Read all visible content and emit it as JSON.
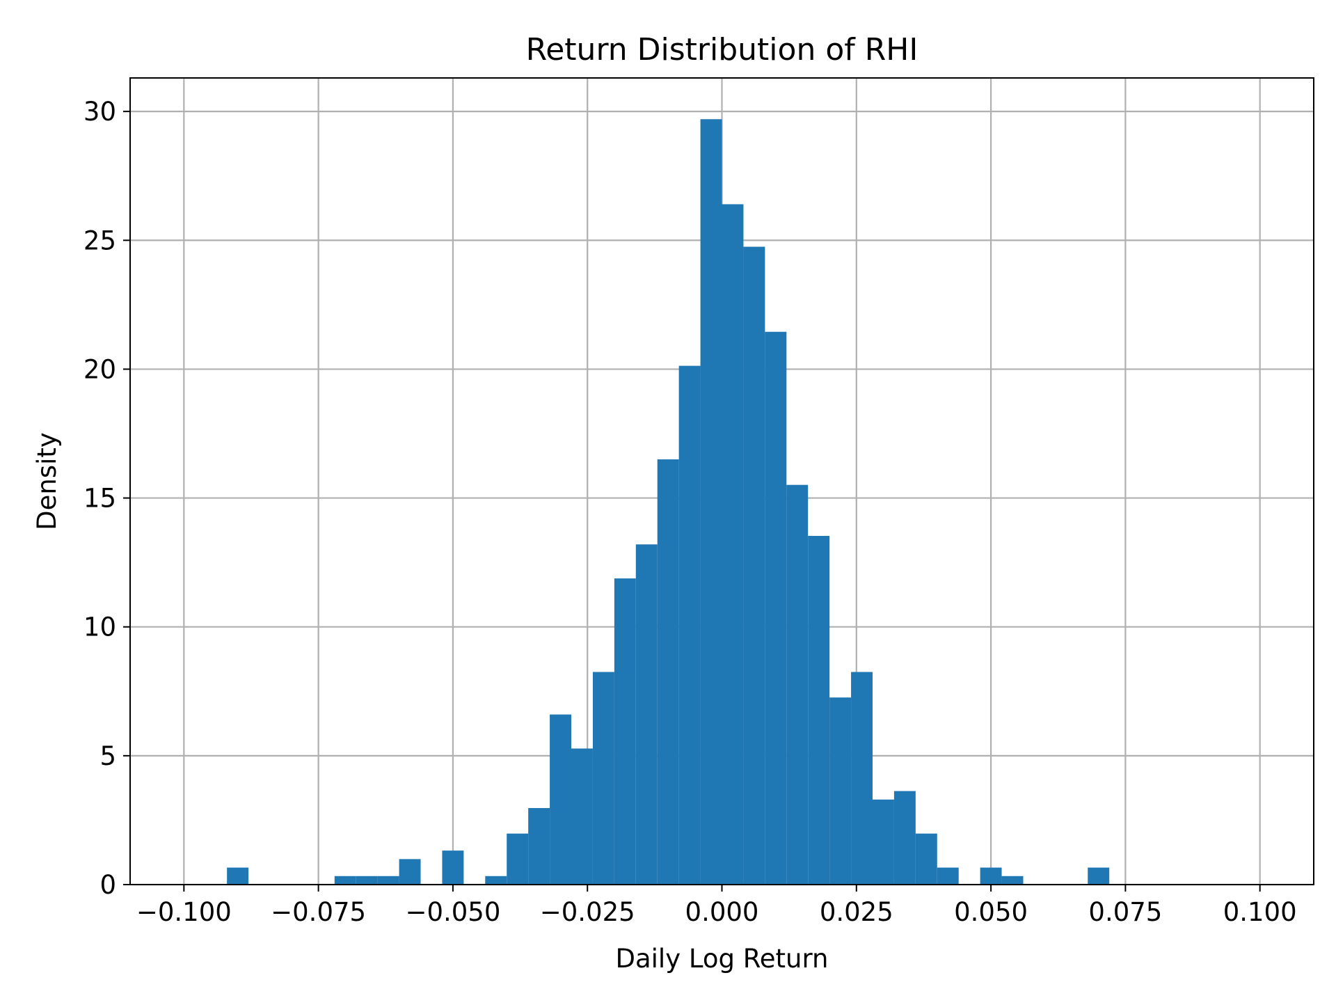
{
  "chart_data": {
    "type": "bar",
    "title": "Return Distribution of RHI",
    "xlabel": "Daily Log Return",
    "ylabel": "Density",
    "xlim": [
      -0.11,
      0.11
    ],
    "ylim": [
      0,
      31.3
    ],
    "xticks": [
      -0.1,
      -0.075,
      -0.05,
      -0.025,
      0.0,
      0.025,
      0.05,
      0.075,
      0.1
    ],
    "xtick_labels": [
      "−0.100",
      "−0.075",
      "−0.050",
      "−0.025",
      "0.000",
      "0.025",
      "0.050",
      "0.075",
      "0.100"
    ],
    "yticks": [
      0,
      5,
      10,
      15,
      20,
      25,
      30
    ],
    "ytick_labels": [
      "0",
      "5",
      "10",
      "15",
      "20",
      "25",
      "30"
    ],
    "grid": true,
    "bar_color": "#1f77b4",
    "bin_width": 0.004,
    "bins": [
      {
        "x0": -0.092,
        "x1": -0.088,
        "value": 0.66
      },
      {
        "x0": -0.072,
        "x1": -0.068,
        "value": 0.33
      },
      {
        "x0": -0.068,
        "x1": -0.064,
        "value": 0.33
      },
      {
        "x0": -0.064,
        "x1": -0.06,
        "value": 0.33
      },
      {
        "x0": -0.06,
        "x1": -0.056,
        "value": 0.99
      },
      {
        "x0": -0.052,
        "x1": -0.048,
        "value": 1.32
      },
      {
        "x0": -0.044,
        "x1": -0.04,
        "value": 0.33
      },
      {
        "x0": -0.04,
        "x1": -0.036,
        "value": 1.98
      },
      {
        "x0": -0.036,
        "x1": -0.032,
        "value": 2.97
      },
      {
        "x0": -0.032,
        "x1": -0.028,
        "value": 6.6
      },
      {
        "x0": -0.028,
        "x1": -0.024,
        "value": 5.28
      },
      {
        "x0": -0.024,
        "x1": -0.02,
        "value": 8.25
      },
      {
        "x0": -0.02,
        "x1": -0.016,
        "value": 11.88
      },
      {
        "x0": -0.016,
        "x1": -0.012,
        "value": 13.2
      },
      {
        "x0": -0.012,
        "x1": -0.008,
        "value": 16.5
      },
      {
        "x0": -0.008,
        "x1": -0.004,
        "value": 20.13
      },
      {
        "x0": -0.004,
        "x1": 0.0,
        "value": 29.7
      },
      {
        "x0": 0.0,
        "x1": 0.004,
        "value": 26.4
      },
      {
        "x0": 0.004,
        "x1": 0.008,
        "value": 24.75
      },
      {
        "x0": 0.008,
        "x1": 0.012,
        "value": 21.45
      },
      {
        "x0": 0.012,
        "x1": 0.016,
        "value": 15.51
      },
      {
        "x0": 0.016,
        "x1": 0.02,
        "value": 13.53
      },
      {
        "x0": 0.02,
        "x1": 0.024,
        "value": 7.26
      },
      {
        "x0": 0.024,
        "x1": 0.028,
        "value": 8.25
      },
      {
        "x0": 0.028,
        "x1": 0.032,
        "value": 3.3
      },
      {
        "x0": 0.032,
        "x1": 0.036,
        "value": 3.63
      },
      {
        "x0": 0.036,
        "x1": 0.04,
        "value": 1.98
      },
      {
        "x0": 0.04,
        "x1": 0.044,
        "value": 0.66
      },
      {
        "x0": 0.048,
        "x1": 0.052,
        "value": 0.66
      },
      {
        "x0": 0.052,
        "x1": 0.056,
        "value": 0.33
      },
      {
        "x0": 0.068,
        "x1": 0.072,
        "value": 0.66
      }
    ]
  }
}
